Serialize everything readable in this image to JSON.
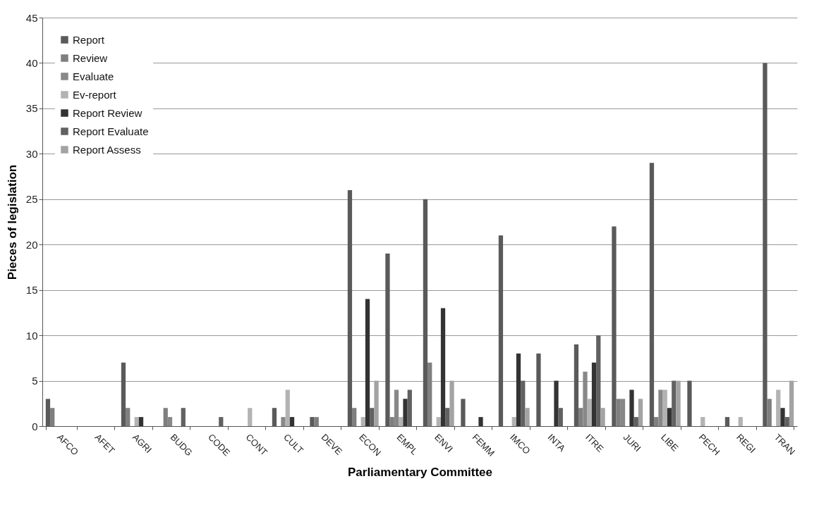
{
  "chart_data": {
    "type": "bar",
    "xlabel": "Parliamentary Committee",
    "ylabel": "Pieces of legislation",
    "categories": [
      "AFCO",
      "AFET",
      "AGRI",
      "BUDG",
      "CODE",
      "CONT",
      "CULT",
      "DEVE",
      "ECON",
      "EMPL",
      "ENVI",
      "FEMM",
      "IMCO",
      "INTA",
      "ITRE",
      "JURI",
      "LIBE",
      "PECH",
      "REGI",
      "TRAN"
    ],
    "series": [
      {
        "name": "Report",
        "color": "#5a5a5a",
        "values": [
          3,
          0,
          7,
          0,
          0,
          0,
          2,
          1,
          26,
          19,
          25,
          3,
          21,
          8,
          9,
          22,
          29,
          5,
          1,
          40
        ]
      },
      {
        "name": "Review",
        "color": "#7f7f7f",
        "values": [
          2,
          0,
          2,
          2,
          0,
          0,
          0,
          1,
          2,
          1,
          7,
          0,
          0,
          0,
          2,
          3,
          1,
          0,
          0,
          3
        ]
      },
      {
        "name": "Evaluate",
        "color": "#888888",
        "values": [
          0,
          0,
          0,
          1,
          0,
          0,
          1,
          0,
          0,
          4,
          0,
          0,
          0,
          0,
          6,
          3,
          4,
          0,
          0,
          0
        ]
      },
      {
        "name": "Ev-report",
        "color": "#b3b3b3",
        "values": [
          0,
          0,
          1,
          0,
          0,
          2,
          4,
          0,
          1,
          1,
          1,
          0,
          1,
          0,
          3,
          0,
          4,
          1,
          1,
          4
        ]
      },
      {
        "name": "Report  Review",
        "color": "#333333",
        "values": [
          0,
          0,
          1,
          0,
          0,
          0,
          1,
          0,
          14,
          3,
          13,
          1,
          8,
          5,
          7,
          4,
          2,
          0,
          0,
          2
        ]
      },
      {
        "name": "Report Evaluate",
        "color": "#616161",
        "values": [
          0,
          0,
          0,
          2,
          1,
          0,
          0,
          0,
          2,
          4,
          2,
          0,
          5,
          2,
          10,
          1,
          5,
          0,
          0,
          1
        ]
      },
      {
        "name": "Report Assess",
        "color": "#a3a3a3",
        "values": [
          0,
          0,
          0,
          0,
          0,
          0,
          0,
          0,
          5,
          0,
          5,
          0,
          2,
          0,
          2,
          3,
          5,
          0,
          0,
          5
        ]
      }
    ],
    "ylim": [
      0,
      45
    ],
    "yticks": [
      0,
      5,
      10,
      15,
      20,
      25,
      30,
      35,
      40,
      45
    ],
    "grid": "y",
    "legend": "top left"
  }
}
